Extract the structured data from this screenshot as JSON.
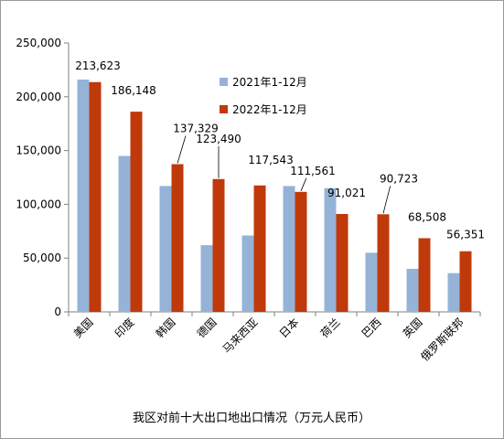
{
  "chart_data": {
    "type": "bar",
    "title": "我区对前十大出口地出口情况（万元人民币）",
    "categories": [
      "美国",
      "印度",
      "韩国",
      "德国",
      "马来西亚",
      "日本",
      "荷兰",
      "巴西",
      "英国",
      "俄罗斯联邦"
    ],
    "series": [
      {
        "name": "2021年1-12月",
        "color": "#95b3d7",
        "values": [
          216000,
          145000,
          117000,
          62000,
          71000,
          117000,
          115000,
          55000,
          40000,
          36000
        ]
      },
      {
        "name": "2022年1-12月",
        "color": "#c0390b",
        "values": [
          213623,
          186148,
          137329,
          123490,
          117543,
          111561,
          91021,
          90723,
          68508,
          56351
        ]
      }
    ],
    "data_labels": [
      "213,623",
      "186,148",
      "137,329",
      "123,490",
      "117,543",
      "111,561",
      "91,021",
      "90,723",
      "68,508",
      "56,351"
    ],
    "y_ticks": [
      "0",
      "50,000",
      "100,000",
      "150,000",
      "200,000",
      "250,000"
    ],
    "ylim": [
      0,
      250000
    ],
    "legend_position": "top-right",
    "grid": false
  }
}
